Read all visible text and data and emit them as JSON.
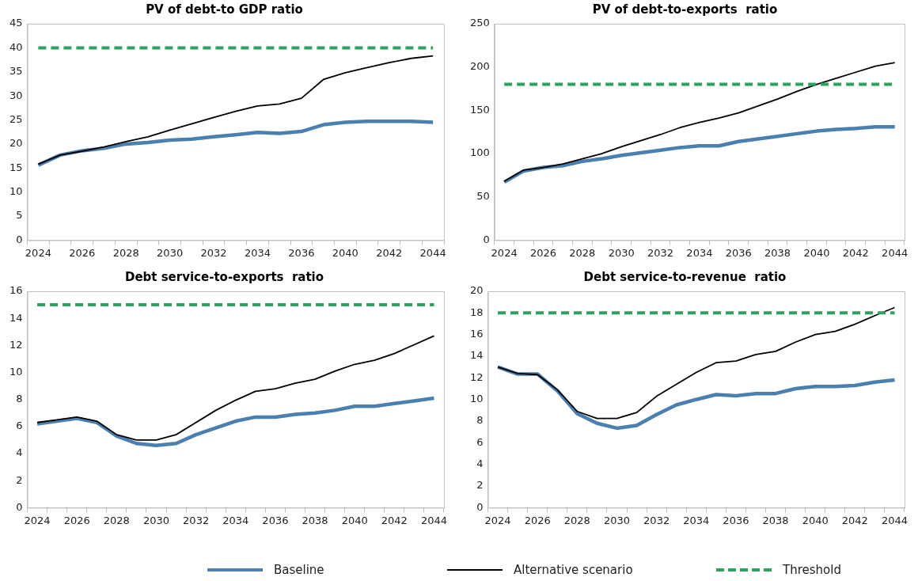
{
  "chart_data": [
    {
      "type": "line",
      "title": "PV of debt-to GDP ratio",
      "categories": [
        "2024",
        null,
        "2026",
        null,
        "2028",
        null,
        "2030",
        null,
        "2032",
        null,
        "2034",
        null,
        "2036",
        null,
        "2040",
        null,
        "2042",
        null,
        "2044"
      ],
      "series": [
        {
          "name": "Baseline",
          "color": "#4a7fb0",
          "values": [
            15.6,
            17.7,
            18.6,
            19.1,
            20.0,
            20.3,
            20.8,
            21.0,
            21.5,
            21.9,
            22.4,
            22.2,
            22.6,
            24.0,
            24.5,
            24.7,
            24.7,
            24.7,
            24.5
          ]
        },
        {
          "name": "Alternative scenario",
          "color": "#000000",
          "values": [
            15.8,
            17.7,
            18.5,
            19.4,
            20.5,
            21.5,
            22.9,
            24.2,
            25.5,
            26.8,
            27.9,
            28.3,
            29.5,
            33.4,
            34.8,
            35.9,
            36.9,
            37.8,
            38.3
          ]
        },
        {
          "name": "Threshold",
          "color": "#30a060",
          "line_style": "dashed",
          "values": [
            40,
            40,
            40,
            40,
            40,
            40,
            40,
            40,
            40,
            40,
            40,
            40,
            40,
            40,
            40,
            40,
            40,
            40,
            40
          ]
        }
      ],
      "ylim": [
        0,
        45
      ],
      "yticks": [
        0,
        5,
        10,
        15,
        20,
        25,
        30,
        35,
        40,
        45
      ],
      "legend": "bottom",
      "marker": "none"
    },
    {
      "type": "line",
      "title": "PV of debt-to-exports  ratio",
      "categories": [
        "2024",
        null,
        "2026",
        null,
        "2028",
        null,
        "2030",
        null,
        "2032",
        null,
        "2034",
        null,
        "2036",
        null,
        "2038",
        null,
        "2040",
        null,
        "2042",
        null,
        "2044"
      ],
      "series": [
        {
          "color": "#4a7fb0",
          "values": [
            67,
            80,
            84,
            86,
            91,
            94,
            98,
            101,
            104,
            107,
            109,
            109,
            114,
            117,
            120,
            123,
            126,
            128,
            129,
            131,
            131
          ]
        },
        {
          "color": "#000000",
          "values": [
            68,
            81,
            84,
            88,
            94,
            100,
            108,
            115,
            122,
            130,
            136,
            141,
            147,
            155,
            163,
            172,
            180,
            187,
            194,
            201,
            205
          ]
        },
        {
          "color": "#30a060",
          "line_style": "dashed",
          "values": [
            180,
            180,
            180,
            180,
            180,
            180,
            180,
            180,
            180,
            180,
            180,
            180,
            180,
            180,
            180,
            180,
            180,
            180,
            180,
            180,
            180
          ]
        }
      ],
      "ylim": [
        0,
        250
      ],
      "yticks": [
        0,
        50,
        100,
        150,
        200,
        250
      ],
      "marker": "none"
    },
    {
      "type": "line",
      "title": "Debt service-to-exports  ratio",
      "categories": [
        "2024",
        null,
        "2026",
        null,
        "2028",
        null,
        "2030",
        null,
        "2032",
        null,
        "2034",
        null,
        "2036",
        null,
        "2038",
        null,
        "2040",
        null,
        "2042",
        null,
        "2044"
      ],
      "series": [
        {
          "color": "#4a7fb0",
          "values": [
            6.2,
            6.4,
            6.6,
            6.3,
            5.3,
            4.75,
            4.6,
            4.75,
            5.4,
            5.9,
            6.4,
            6.7,
            6.7,
            6.9,
            7.0,
            7.2,
            7.5,
            7.5,
            7.7,
            7.9,
            8.1
          ]
        },
        {
          "color": "#000000",
          "values": [
            6.3,
            6.5,
            6.7,
            6.4,
            5.4,
            5.0,
            5.0,
            5.4,
            6.3,
            7.2,
            7.95,
            8.6,
            8.8,
            9.2,
            9.5,
            10.1,
            10.6,
            10.9,
            11.4,
            12.05,
            12.7
          ]
        },
        {
          "color": "#30a060",
          "line_style": "dashed",
          "values": [
            15,
            15,
            15,
            15,
            15,
            15,
            15,
            15,
            15,
            15,
            15,
            15,
            15,
            15,
            15,
            15,
            15,
            15,
            15,
            15,
            15
          ]
        }
      ],
      "ylim": [
        0,
        16
      ],
      "yticks": [
        0,
        2,
        4,
        6,
        8,
        10,
        12,
        14,
        16
      ],
      "marker": "none"
    },
    {
      "type": "line",
      "title": "Debt service-to-revenue  ratio",
      "categories": [
        "2024",
        null,
        "2026",
        null,
        "2028",
        null,
        "2030",
        null,
        "2032",
        null,
        "2034",
        null,
        "2036",
        null,
        "2038",
        null,
        "2040",
        null,
        "2042",
        null,
        "2044"
      ],
      "series": [
        {
          "color": "#4a7fb0",
          "values": [
            13.0,
            12.35,
            12.35,
            10.8,
            8.7,
            7.8,
            7.35,
            7.6,
            8.6,
            9.5,
            10.0,
            10.45,
            10.35,
            10.55,
            10.55,
            11.0,
            11.2,
            11.2,
            11.3,
            11.6,
            11.8
          ]
        },
        {
          "color": "#000000",
          "values": [
            13.0,
            12.4,
            12.3,
            10.9,
            8.9,
            8.25,
            8.25,
            8.8,
            10.3,
            11.4,
            12.5,
            13.4,
            13.55,
            14.15,
            14.45,
            15.3,
            16.0,
            16.3,
            16.95,
            17.75,
            18.5
          ]
        },
        {
          "color": "#30a060",
          "line_style": "dashed",
          "values": [
            18,
            18,
            18,
            18,
            18,
            18,
            18,
            18,
            18,
            18,
            18,
            18,
            18,
            18,
            18,
            18,
            18,
            18,
            18,
            18,
            18
          ]
        }
      ],
      "ylim": [
        0,
        20
      ],
      "yticks": [
        0,
        2,
        4,
        6,
        8,
        10,
        12,
        14,
        16,
        18,
        20
      ],
      "marker": "none"
    }
  ]
}
